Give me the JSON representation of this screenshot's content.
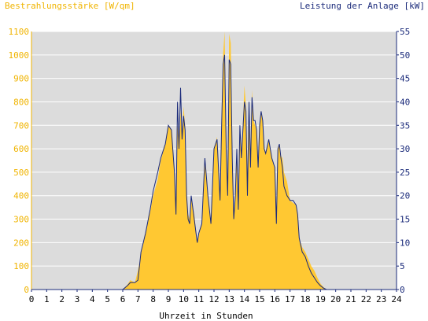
{
  "chart_data": {
    "type": "area",
    "title_left": "Bestrahlungsstärke [W/qm]",
    "title_right": "Leistung der Anlage [kW]",
    "xlabel": "Uhrzeit in Stunden",
    "xlim": [
      0,
      24
    ],
    "y_left_lim": [
      0,
      1100
    ],
    "y_right_lim": [
      0,
      55
    ],
    "x_ticks": [
      "0",
      "1",
      "2",
      "3",
      "4",
      "5",
      "6",
      "7",
      "8",
      "9",
      "10",
      "11",
      "12",
      "13",
      "14",
      "15",
      "16",
      "17",
      "18",
      "19",
      "20",
      "21",
      "22",
      "23",
      "24"
    ],
    "y_left_ticks": [
      "0",
      "100",
      "200",
      "300",
      "400",
      "500",
      "600",
      "700",
      "800",
      "900",
      "1000",
      "1100"
    ],
    "y_right_ticks": [
      "0",
      "5",
      "10",
      "15",
      "20",
      "25",
      "30",
      "35",
      "40",
      "45",
      "50",
      "55"
    ],
    "grid": true,
    "colors": {
      "plot_background": "#dcdcdc",
      "grid": "#ffffff",
      "irradiance_fill": "#ffc832",
      "power_line": "#1a2a7a",
      "left_axis_text": "#f0b400",
      "right_axis_text": "#1a2a7a"
    },
    "series": [
      {
        "axis": "left",
        "style": "area",
        "x": [
          0,
          6.0,
          6.3,
          6.5,
          6.8,
          7.0,
          7.2,
          7.5,
          7.8,
          8.0,
          8.3,
          8.5,
          8.8,
          9.0,
          9.2,
          9.4,
          9.5,
          9.6,
          9.7,
          9.8,
          9.9,
          10.0,
          10.1,
          10.2,
          10.3,
          10.4,
          10.5,
          10.7,
          10.9,
          11.0,
          11.2,
          11.4,
          11.6,
          11.8,
          12.0,
          12.2,
          12.4,
          12.5,
          12.6,
          12.7,
          12.8,
          12.9,
          13.0,
          13.1,
          13.2,
          13.3,
          13.4,
          13.5,
          13.6,
          13.7,
          13.8,
          14.0,
          14.1,
          14.2,
          14.3,
          14.4,
          14.5,
          14.6,
          14.7,
          14.8,
          14.9,
          15.0,
          15.1,
          15.2,
          15.3,
          15.4,
          15.6,
          15.8,
          16.0,
          16.1,
          16.2,
          16.3,
          16.4,
          16.5,
          16.6,
          16.8,
          17.0,
          17.2,
          17.4,
          17.5,
          17.6,
          17.8,
          18.0,
          18.2,
          18.4,
          18.6,
          18.8,
          19.0,
          19.2,
          19.4,
          24
        ],
        "values": [
          0,
          0,
          20,
          40,
          30,
          80,
          150,
          240,
          330,
          400,
          470,
          550,
          620,
          700,
          680,
          500,
          330,
          700,
          600,
          760,
          650,
          780,
          700,
          400,
          320,
          300,
          400,
          320,
          200,
          230,
          280,
          560,
          400,
          280,
          600,
          650,
          380,
          700,
          1000,
          1100,
          620,
          400,
          1090,
          1050,
          550,
          300,
          400,
          600,
          330,
          700,
          550,
          870,
          780,
          400,
          800,
          520,
          850,
          720,
          700,
          680,
          520,
          700,
          760,
          720,
          600,
          580,
          640,
          560,
          520,
          280,
          600,
          620,
          570,
          560,
          500,
          460,
          380,
          370,
          360,
          320,
          220,
          180,
          160,
          130,
          100,
          80,
          50,
          25,
          10,
          0,
          0
        ]
      },
      {
        "axis": "right",
        "style": "line",
        "x": [
          0,
          6.0,
          6.3,
          6.5,
          6.8,
          7.0,
          7.2,
          7.5,
          7.8,
          8.0,
          8.3,
          8.5,
          8.8,
          9.0,
          9.2,
          9.4,
          9.5,
          9.6,
          9.7,
          9.8,
          9.9,
          10.0,
          10.1,
          10.2,
          10.3,
          10.4,
          10.5,
          10.7,
          10.9,
          11.0,
          11.2,
          11.4,
          11.6,
          11.8,
          12.0,
          12.2,
          12.4,
          12.5,
          12.6,
          12.7,
          12.8,
          12.9,
          13.0,
          13.1,
          13.2,
          13.3,
          13.4,
          13.5,
          13.6,
          13.7,
          13.8,
          14.0,
          14.1,
          14.2,
          14.3,
          14.4,
          14.5,
          14.6,
          14.7,
          14.8,
          14.9,
          15.0,
          15.1,
          15.2,
          15.3,
          15.4,
          15.6,
          15.8,
          16.0,
          16.1,
          16.2,
          16.3,
          16.4,
          16.5,
          16.6,
          16.8,
          17.0,
          17.2,
          17.4,
          17.5,
          17.6,
          17.8,
          18.0,
          18.2,
          18.4,
          18.6,
          18.8,
          19.0,
          19.2,
          19.4,
          24
        ],
        "values": [
          0,
          0,
          0.8,
          1.5,
          1.5,
          2,
          8,
          12,
          17,
          21,
          25,
          28,
          31,
          35,
          34,
          25,
          16,
          40,
          30,
          43,
          32,
          37,
          34,
          20,
          15,
          14,
          20,
          15,
          10,
          12,
          14,
          28,
          20,
          14,
          30,
          32,
          19,
          35,
          48,
          50,
          30,
          20,
          49,
          48,
          28,
          15,
          20,
          30,
          17,
          35,
          28,
          40,
          38,
          20,
          40,
          26,
          41,
          36,
          36,
          34,
          26,
          35,
          38,
          36,
          30,
          29,
          32,
          28,
          26,
          14,
          30,
          31,
          28,
          26,
          22,
          20,
          19,
          19,
          18,
          16,
          11,
          8,
          7,
          5,
          3.5,
          2.5,
          1.5,
          0.8,
          0.3,
          0,
          0
        ]
      }
    ]
  }
}
